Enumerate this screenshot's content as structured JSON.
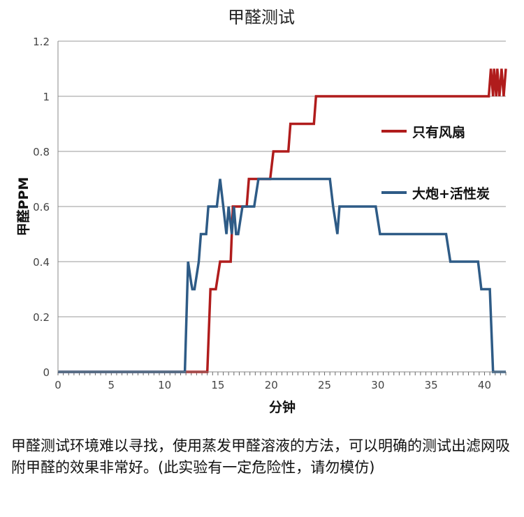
{
  "chart_data": {
    "type": "line",
    "title": "甲醛测试",
    "xlabel": "分钟",
    "ylabel": "甲醛PPM",
    "xlim": [
      0,
      42
    ],
    "ylim": [
      0,
      1.2
    ],
    "x_ticks": [
      0,
      5,
      10,
      15,
      20,
      25,
      30,
      35,
      40
    ],
    "y_ticks": [
      0,
      0.2,
      0.4,
      0.6,
      0.8,
      1,
      1.2
    ],
    "y_tick_labels": [
      "0",
      "0.2",
      "0.4",
      "0.6",
      "0.8",
      "1",
      "1.2"
    ],
    "grid": true,
    "legend_position": "right",
    "series": [
      {
        "name": "只有风扇",
        "color": "#b01c1c",
        "x": [
          0,
          14,
          14.3,
          14.5,
          14.8,
          15.2,
          16.2,
          16.4,
          17.7,
          17.9,
          19.9,
          20.2,
          21.6,
          21.8,
          24.0,
          24.2,
          40.4,
          40.6,
          40.8,
          40.9,
          41.1,
          41.2,
          41.4,
          41.6,
          41.8,
          42
        ],
        "y": [
          0,
          0,
          0.3,
          0.3,
          0.3,
          0.4,
          0.4,
          0.6,
          0.6,
          0.7,
          0.7,
          0.8,
          0.8,
          0.9,
          0.9,
          1.0,
          1.0,
          1.1,
          1.0,
          1.1,
          1.0,
          1.1,
          1.0,
          1.1,
          1.0,
          1.1
        ]
      },
      {
        "name": "大炮+活性炭",
        "color": "#2e5b86",
        "x": [
          0,
          11.9,
          12.2,
          12.5,
          12.6,
          12.8,
          13.2,
          13.4,
          13.9,
          14.1,
          14.9,
          15.2,
          15.5,
          15.8,
          16.0,
          16.3,
          16.5,
          16.7,
          16.9,
          17.3,
          17.5,
          18.4,
          18.8,
          20.0,
          24.0,
          25.5,
          25.8,
          26.2,
          26.4,
          29.8,
          30.2,
          36.4,
          36.8,
          39.4,
          39.7,
          40.5,
          40.8,
          42
        ],
        "y": [
          0,
          0,
          0.4,
          0.32,
          0.3,
          0.3,
          0.4,
          0.5,
          0.5,
          0.6,
          0.6,
          0.7,
          0.6,
          0.5,
          0.6,
          0.5,
          0.6,
          0.5,
          0.5,
          0.6,
          0.6,
          0.6,
          0.7,
          0.7,
          0.7,
          0.7,
          0.6,
          0.5,
          0.6,
          0.6,
          0.5,
          0.5,
          0.4,
          0.4,
          0.3,
          0.3,
          0.0,
          0.0
        ]
      }
    ]
  },
  "caption": "甲醛测试环境难以寻找，使用蒸发甲醛溶液的方法，可以明确的测试出滤网吸附甲醛的效果非常好。(此实验有一定危险性，请勿模仿)"
}
